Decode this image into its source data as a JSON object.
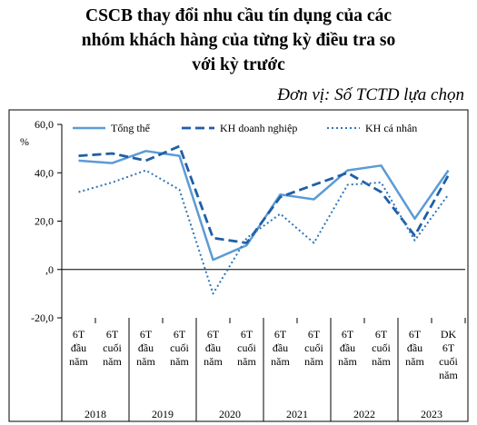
{
  "title_lines": [
    "CSCB thay đổi nhu cầu tín dụng của các",
    "nhóm khách hàng của từng kỳ điều tra so",
    "với kỳ trước"
  ],
  "unit_label": "Đơn vị: Số TCTD lựa chọn",
  "chart_data": {
    "type": "line",
    "title": "CSCB thay đổi nhu cầu tín dụng của các nhóm khách hàng của từng kỳ điều tra so với kỳ trước",
    "ylabel": "%",
    "ylim": [
      -20,
      60
    ],
    "yticks": [
      "60,0",
      "40,0",
      "20,0",
      ",0",
      "-20,0"
    ],
    "yticks_values": [
      60,
      40,
      20,
      0,
      -20
    ],
    "categories": [
      [
        "6T",
        "đầu",
        "năm"
      ],
      [
        "6T",
        "cuối",
        "năm"
      ],
      [
        "6T",
        "đầu",
        "năm"
      ],
      [
        "6T",
        "cuối",
        "năm"
      ],
      [
        "6T",
        "đầu",
        "năm"
      ],
      [
        "6T",
        "cuối",
        "năm"
      ],
      [
        "6T",
        "đầu",
        "năm"
      ],
      [
        "6T",
        "cuối",
        "năm"
      ],
      [
        "6T",
        "đầu",
        "năm"
      ],
      [
        "6T",
        "cuối",
        "năm"
      ],
      [
        "6T",
        "đầu",
        "năm"
      ],
      [
        "DK",
        "6T",
        "cuối",
        "năm"
      ]
    ],
    "years": [
      "2018",
      "2019",
      "2020",
      "2021",
      "2022",
      "2023"
    ],
    "legend_position": "top",
    "series": [
      {
        "name": "Tổng thể",
        "style": "solid",
        "color": "#5b9bd5",
        "values": [
          45,
          44,
          49,
          47,
          4,
          10,
          31,
          29,
          41,
          43,
          21,
          41
        ]
      },
      {
        "name": "KH doanh nghiệp",
        "style": "dashed",
        "color": "#1f5fa6",
        "values": [
          47,
          48,
          45,
          51,
          13,
          11,
          30,
          35,
          40,
          32,
          14,
          39
        ]
      },
      {
        "name": "KH cá nhân",
        "style": "dotted",
        "color": "#2e75b6",
        "values": [
          32,
          36,
          41,
          33,
          -10,
          13,
          23,
          11,
          35,
          36,
          12,
          31
        ]
      }
    ]
  }
}
